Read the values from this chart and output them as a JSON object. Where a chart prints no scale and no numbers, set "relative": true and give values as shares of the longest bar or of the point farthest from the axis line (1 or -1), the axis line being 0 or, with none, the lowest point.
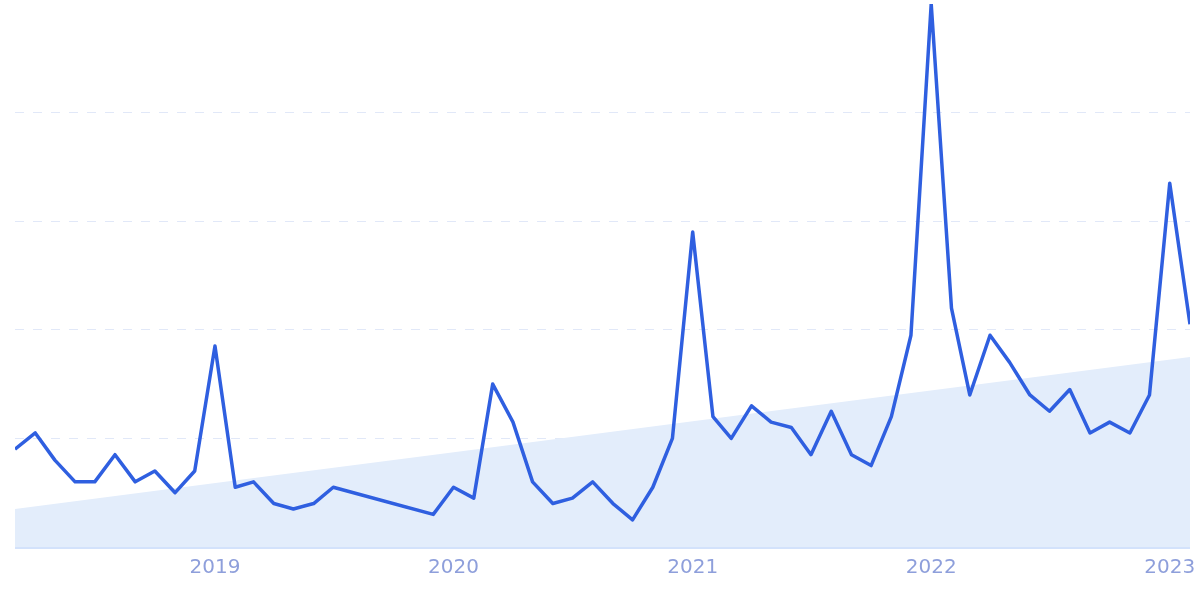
{
  "chart_data": {
    "type": "line",
    "relative": true,
    "grid": "y",
    "marker": "none",
    "line_style": "solid",
    "xlim": [
      "2018-03",
      "2023-02"
    ],
    "xticks": [
      "2019",
      "2020",
      "2021",
      "2022",
      "2023"
    ],
    "series": [
      {
        "type": "area",
        "color": "#e3edfb",
        "x": [
          "2018-03",
          "2023-02"
        ],
        "values": [
          0.07,
          0.35
        ]
      },
      {
        "color": "#2f5fe0",
        "x": [
          "2018-03",
          "2018-04",
          "2018-05",
          "2018-06",
          "2018-07",
          "2018-08",
          "2018-09",
          "2018-10",
          "2018-11",
          "2018-12",
          "2019-01",
          "2019-02",
          "2019-03",
          "2019-04",
          "2019-05",
          "2019-06",
          "2019-07",
          "2019-12",
          "2020-01",
          "2020-02",
          "2020-03",
          "2020-04",
          "2020-05",
          "2020-06",
          "2020-07",
          "2020-08",
          "2020-09",
          "2020-10",
          "2020-11",
          "2020-12",
          "2021-01",
          "2021-02",
          "2021-03",
          "2021-04",
          "2021-05",
          "2021-06",
          "2021-07",
          "2021-08",
          "2021-09",
          "2021-10",
          "2021-11",
          "2021-12",
          "2022-01",
          "2022-02",
          "2022-03",
          "2022-04",
          "2022-05",
          "2022-06",
          "2022-07",
          "2022-08",
          "2022-09",
          "2022-10",
          "2022-11",
          "2022-12",
          "2023-01",
          "2023-02"
        ],
        "values": [
          0.18,
          0.21,
          0.16,
          0.12,
          0.12,
          0.17,
          0.12,
          0.14,
          0.1,
          0.14,
          0.37,
          0.11,
          0.12,
          0.08,
          0.07,
          0.08,
          0.11,
          0.06,
          0.11,
          0.09,
          0.3,
          0.23,
          0.12,
          0.08,
          0.09,
          0.12,
          0.08,
          0.05,
          0.11,
          0.2,
          0.58,
          0.24,
          0.2,
          0.26,
          0.23,
          0.22,
          0.17,
          0.25,
          0.17,
          0.15,
          0.24,
          0.39,
          1,
          0.44,
          0.28,
          0.39,
          0.34,
          0.28,
          0.25,
          0.29,
          0.21,
          0.23,
          0.21,
          0.28,
          0.67,
          0.41
        ]
      }
    ]
  }
}
